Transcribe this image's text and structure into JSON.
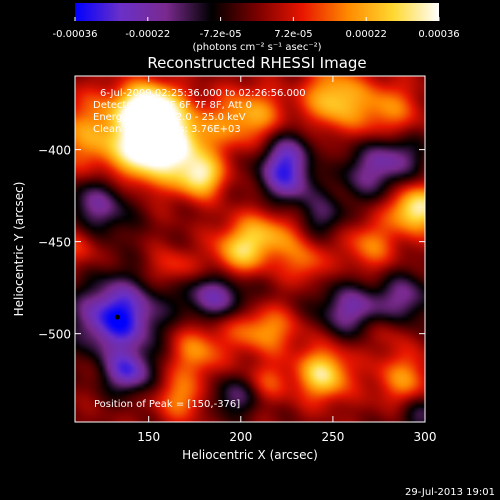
{
  "chart_data": {
    "type": "heatmap",
    "title": "Reconstructed RHESSI Image",
    "xlabel": "Heliocentric X (arcsec)",
    "ylabel": "Heliocentric Y (arcsec)",
    "xlim": [
      110,
      300
    ],
    "ylim": [
      -548,
      -360
    ],
    "x_ticks": [
      150,
      200,
      250,
      300
    ],
    "y_ticks": [
      -400,
      -450,
      -500
    ],
    "colorbar": {
      "range": [
        -0.00036,
        0.00036
      ],
      "ticks": [
        "-0.00036",
        "-0.00022",
        "-7.2e-05",
        "7.2e-05",
        "0.00022",
        "0.00036"
      ],
      "label": "(photons cm⁻² s⁻¹ asec⁻²)",
      "colors": [
        "#0000ff",
        "#6a30c8",
        "#7a2a8e",
        "#000000",
        "#7a0000",
        "#e81600",
        "#ff8a00",
        "#ffd830",
        "#ffffff"
      ]
    },
    "annotations": [
      "6-Jul-2009 02:25:36.000 to 02:26:56.000",
      "Detectors: 1F 5F 6F 7F 8F, Att 0",
      "Energy Range: 12.0 - 25.0 keV",
      "Clean  Total counts: 3.76E+03"
    ],
    "peak_label": "Position of Peak = [150,-376]",
    "marker_point": [
      133,
      -491
    ],
    "blobs": [
      {
        "x": 118,
        "y": -392,
        "amp": 0.00018,
        "sx": 18,
        "sy": 16
      },
      {
        "x": 150,
        "y": -400,
        "amp": 0.0003,
        "sx": 14,
        "sy": 14
      },
      {
        "x": 165,
        "y": -395,
        "amp": 0.00024,
        "sx": 16,
        "sy": 12
      },
      {
        "x": 150,
        "y": -376,
        "amp": 0.00036,
        "sx": 12,
        "sy": 9
      },
      {
        "x": 178,
        "y": -415,
        "amp": 0.00028,
        "sx": 9,
        "sy": 8
      },
      {
        "x": 205,
        "y": -382,
        "amp": 0.00022,
        "sx": 14,
        "sy": 11
      },
      {
        "x": 250,
        "y": -372,
        "amp": 0.00025,
        "sx": 11,
        "sy": 12
      },
      {
        "x": 278,
        "y": -378,
        "amp": 0.00018,
        "sx": 13,
        "sy": 11
      },
      {
        "x": 295,
        "y": -432,
        "amp": 0.00034,
        "sx": 10,
        "sy": 9
      },
      {
        "x": 270,
        "y": -452,
        "amp": 0.00016,
        "sx": 11,
        "sy": 10
      },
      {
        "x": 213,
        "y": -447,
        "amp": 0.00022,
        "sx": 14,
        "sy": 10
      },
      {
        "x": 198,
        "y": -457,
        "amp": 0.00018,
        "sx": 10,
        "sy": 9
      },
      {
        "x": 235,
        "y": -462,
        "amp": 0.00014,
        "sx": 8,
        "sy": 8
      },
      {
        "x": 163,
        "y": -464,
        "amp": 0.00012,
        "sx": 9,
        "sy": 7
      },
      {
        "x": 212,
        "y": -498,
        "amp": 0.0002,
        "sx": 14,
        "sy": 9
      },
      {
        "x": 176,
        "y": -510,
        "amp": 0.00018,
        "sx": 10,
        "sy": 10
      },
      {
        "x": 245,
        "y": -522,
        "amp": 0.0003,
        "sx": 10,
        "sy": 10
      },
      {
        "x": 168,
        "y": -535,
        "amp": 0.00017,
        "sx": 10,
        "sy": 9
      },
      {
        "x": 288,
        "y": -525,
        "amp": 0.00018,
        "sx": 11,
        "sy": 11
      },
      {
        "x": 277,
        "y": -497,
        "amp": 0.0001,
        "sx": 8,
        "sy": 8
      },
      {
        "x": 112,
        "y": -452,
        "amp": 0.00012,
        "sx": 8,
        "sy": 9
      },
      {
        "x": 240,
        "y": -408,
        "amp": 0.0001,
        "sx": 8,
        "sy": 8
      },
      {
        "x": 215,
        "y": -526,
        "amp": 0.00012,
        "sx": 9,
        "sy": 8
      },
      {
        "x": 133,
        "y": -491,
        "amp": -0.00036,
        "sx": 15,
        "sy": 14
      },
      {
        "x": 139,
        "y": -521,
        "amp": -0.00026,
        "sx": 9,
        "sy": 8
      },
      {
        "x": 226,
        "y": -410,
        "amp": -0.00034,
        "sx": 11,
        "sy": 13
      },
      {
        "x": 272,
        "y": -412,
        "amp": -0.00018,
        "sx": 14,
        "sy": 11
      },
      {
        "x": 245,
        "y": -437,
        "amp": -0.00014,
        "sx": 9,
        "sy": 8
      },
      {
        "x": 123,
        "y": -430,
        "amp": -0.0002,
        "sx": 13,
        "sy": 12
      },
      {
        "x": 186,
        "y": -480,
        "amp": -0.00022,
        "sx": 13,
        "sy": 9
      },
      {
        "x": 262,
        "y": -487,
        "amp": -0.00022,
        "sx": 15,
        "sy": 10
      },
      {
        "x": 290,
        "y": -480,
        "amp": -0.00016,
        "sx": 9,
        "sy": 10
      },
      {
        "x": 286,
        "y": -402,
        "amp": -0.00012,
        "sx": 10,
        "sy": 8
      },
      {
        "x": 196,
        "y": -534,
        "amp": -0.00016,
        "sx": 10,
        "sy": 8
      },
      {
        "x": 296,
        "y": -544,
        "amp": -0.00014,
        "sx": 9,
        "sy": 8
      }
    ]
  },
  "footer": {
    "timestamp": "29-Jul-2013 19:01"
  }
}
